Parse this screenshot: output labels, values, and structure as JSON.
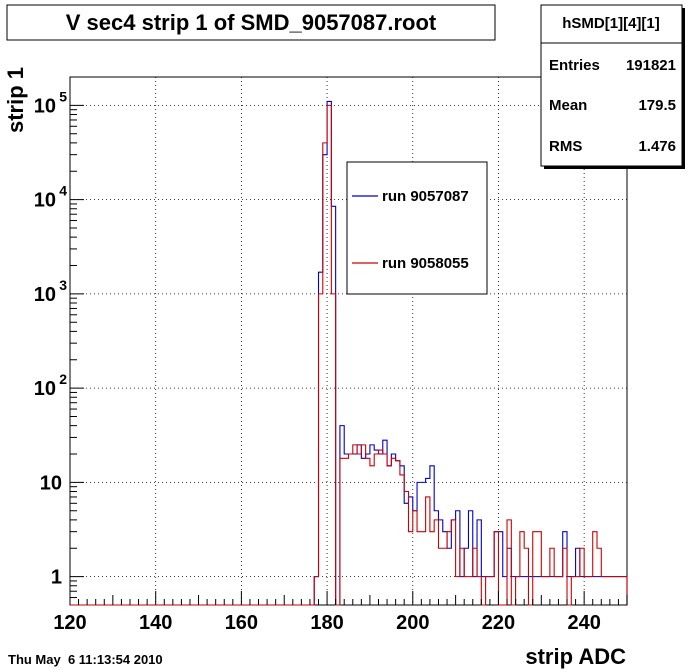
{
  "title": "V sec4 strip 1 of SMD_9057087.root",
  "footer_timestamp": "Thu May  6 11:13:54 2010",
  "stats_box": {
    "name": "hSMD[1][4][1]",
    "rows": [
      {
        "label": "Entries",
        "value": "191821"
      },
      {
        "label": "Mean",
        "value": "179.5"
      },
      {
        "label": "RMS",
        "value": "1.476"
      }
    ]
  },
  "colors": {
    "run_9057087": "#0000cc",
    "run_9058055": "#cc0000",
    "grid": "#000000"
  },
  "chart_data": {
    "type": "line",
    "step_histogram": true,
    "title": "V sec4 strip 1 of SMD_9057087.root",
    "xlabel": "strip ADC",
    "ylabel": "strip 1",
    "y_scale": "log",
    "xlim": [
      120,
      250
    ],
    "ylim": [
      0.5,
      200000
    ],
    "bin_width": 1,
    "grid": true,
    "x_ticks": [
      "120",
      "140",
      "160",
      "180",
      "200",
      "220",
      "240"
    ],
    "y_ticks": [
      {
        "base": "1",
        "exp": ""
      },
      {
        "base": "10",
        "exp": ""
      },
      {
        "base": "10",
        "exp": "2"
      },
      {
        "base": "10",
        "exp": "3"
      },
      {
        "base": "10",
        "exp": "4"
      },
      {
        "base": "10",
        "exp": "5"
      }
    ],
    "legend_position": "upper-center",
    "series": [
      {
        "name": "run 9057087",
        "x_start": 176,
        "values": [
          0.5,
          1,
          1700,
          30000,
          110000,
          8500,
          0.5,
          40,
          20,
          20,
          20,
          25,
          18,
          20,
          25,
          22,
          20,
          28,
          15,
          20,
          17,
          15,
          6,
          7,
          5,
          10,
          10,
          11,
          15,
          5,
          4,
          3,
          2,
          4,
          5,
          1,
          2,
          5,
          1,
          4,
          1,
          1,
          1,
          3,
          3,
          1,
          2,
          1,
          1,
          1,
          1,
          1,
          1,
          1,
          1,
          1,
          1,
          1,
          1,
          3,
          1,
          1,
          2,
          1,
          1,
          1,
          1,
          1,
          1,
          1,
          1,
          1,
          1,
          1
        ]
      },
      {
        "name": "run 9058055",
        "x_start": 176,
        "values": [
          0.5,
          1,
          1000,
          40000,
          100000,
          1000,
          0.5,
          18,
          18,
          20,
          25,
          20,
          25,
          18,
          15,
          20,
          22,
          20,
          15,
          18,
          17,
          12,
          8,
          3,
          5,
          3,
          3,
          7,
          3,
          4,
          2,
          2,
          3,
          4,
          1,
          2,
          1,
          1,
          2,
          1,
          0.5,
          1,
          1,
          3,
          0.5,
          0.5,
          4,
          0.5,
          1,
          3,
          2,
          0.5,
          3,
          3,
          1,
          1,
          2,
          1,
          1,
          2,
          0.5,
          1,
          1,
          2,
          1,
          1,
          3,
          2,
          1,
          1,
          1,
          1,
          1,
          1
        ]
      }
    ]
  }
}
